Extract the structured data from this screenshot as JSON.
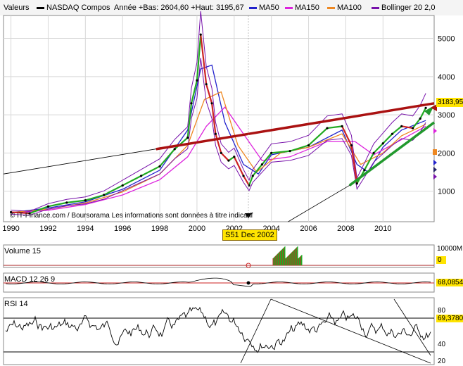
{
  "legend": {
    "valeurs": "Valeurs",
    "nasdaq": "NASDAQ Compos",
    "annee": "Année +Bas: 2604,60 +Haut: 3195,67",
    "ma50": "MA50",
    "ma150": "MA150",
    "ma100": "MA100",
    "bollinger": "Bollinger 20 2,0"
  },
  "colors": {
    "ma50": "#2222cc",
    "ma150": "#dd22dd",
    "ma100": "#ee8822",
    "bollinger": "#7711aa",
    "price_up": "#22aa22",
    "price_down": "#cc2222",
    "trend_red": "#aa1111",
    "trend_green": "#22992e",
    "badge": "#ffe400"
  },
  "price_panel": {
    "copyright": "© IT-Finance.com / Boursorama",
    "disclaimer": "Les informations sont données à titre indicatif",
    "last_value": "3183,95",
    "cursor_label": "S51 Dec 2002"
  },
  "volume_panel": {
    "label": "Volume 15",
    "value": "0",
    "max_tick": "10000M"
  },
  "macd_panel": {
    "label": "MACD 12 26 9",
    "value": "68,0854"
  },
  "rsi_panel": {
    "label": "RSI 14",
    "value": "69,3780"
  },
  "chart_data": {
    "type": "line",
    "title": "NASDAQ Compos",
    "x": [
      1990.0,
      1991.0,
      1992.0,
      1993.0,
      1994.0,
      1995.0,
      1996.0,
      1997.0,
      1998.0,
      1998.8,
      1999.5,
      1999.7,
      2000.0,
      2000.2,
      2000.5,
      2000.8,
      2001.0,
      2001.3,
      2001.7,
      2002.0,
      2002.5,
      2002.8,
      2003.0,
      2003.5,
      2004.0,
      2005.0,
      2006.0,
      2007.0,
      2007.8,
      2008.3,
      2008.6,
      2009.0,
      2009.5,
      2010.0,
      2010.5,
      2011.0,
      2011.6,
      2012.0,
      2012.3
    ],
    "values": [
      450,
      420,
      600,
      700,
      760,
      900,
      1150,
      1400,
      1650,
      2100,
      2400,
      3300,
      3900,
      5100,
      3800,
      3300,
      2500,
      2000,
      1800,
      1900,
      1400,
      1150,
      1400,
      1700,
      2000,
      2050,
      2200,
      2650,
      2700,
      2200,
      1200,
      1550,
      2000,
      2250,
      2500,
      2700,
      2650,
      2900,
      3180
    ],
    "ylim": [
      200,
      5600
    ],
    "xlim": [
      1989.6,
      2012.75
    ],
    "x_ticks": [
      "1990",
      "1992",
      "1994",
      "1996",
      "1998",
      "2000",
      "2002",
      "2004",
      "2006",
      "2008",
      "2010"
    ],
    "x_tick_values": [
      1990,
      1992,
      1994,
      1996,
      1998,
      2000,
      2002,
      2004,
      2006,
      2008,
      2010
    ],
    "y_ticks": [
      "1000",
      "2000",
      "3000",
      "4000",
      "5000"
    ],
    "y_tick_values": [
      1000,
      2000,
      3000,
      4000,
      5000
    ],
    "ma_series": [
      {
        "name": "MA50",
        "x": [
          1990,
          1992,
          1994,
          1996,
          1998,
          1999.5,
          2000.2,
          2000.8,
          2001.5,
          2002.5,
          2003.3,
          2004,
          2006,
          2007.8,
          2008.6,
          2009.2,
          2010,
          2011,
          2012.3
        ],
        "values": [
          440,
          560,
          720,
          1050,
          1550,
          2600,
          4200,
          4300,
          2800,
          1700,
          1450,
          1950,
          2150,
          2600,
          1700,
          1500,
          2150,
          2600,
          2850
        ]
      },
      {
        "name": "MA150",
        "x": [
          1990,
          1992,
          1994,
          1996,
          1998,
          1999.5,
          2000.5,
          2001.5,
          2002.5,
          2003.5,
          2005,
          2007,
          2008.5,
          2009.5,
          2011,
          2012.3
        ],
        "values": [
          430,
          500,
          650,
          900,
          1300,
          1900,
          2700,
          3200,
          2500,
          1800,
          1900,
          2300,
          2300,
          1950,
          2350,
          2700
        ]
      },
      {
        "name": "MA100",
        "x": [
          1990,
          1992,
          1994,
          1996,
          1998,
          1999.5,
          2000.4,
          2001.3,
          2002.2,
          2003.2,
          2004.5,
          2006,
          2007.8,
          2008.8,
          2010,
          2011,
          2012.3
        ],
        "values": [
          440,
          530,
          690,
          980,
          1450,
          2200,
          3400,
          3600,
          2200,
          1500,
          2000,
          2150,
          2500,
          1700,
          2000,
          2450,
          2750
        ]
      }
    ],
    "trend_lines": [
      {
        "name": "resistance",
        "x": [
          1997.8,
          2012.75
        ],
        "values": [
          2100,
          3300
        ]
      },
      {
        "name": "support",
        "x": [
          2008.2,
          2012.75
        ],
        "values": [
          1150,
          2800
        ]
      }
    ]
  }
}
